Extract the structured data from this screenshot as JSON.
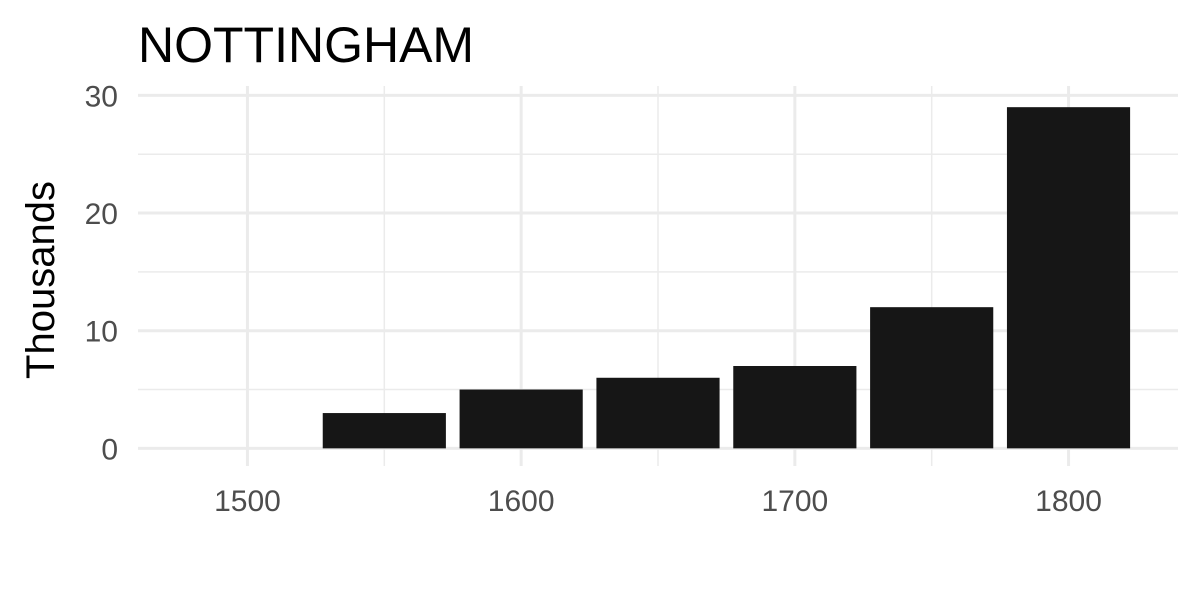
{
  "chart_data": {
    "type": "bar",
    "title": "NOTTINGHAM",
    "xlabel": "",
    "ylabel": "Thousands",
    "x": [
      1550,
      1600,
      1650,
      1700,
      1750,
      1800
    ],
    "values": [
      3,
      5,
      6,
      7,
      12,
      29
    ],
    "bar_width": 45,
    "xlim": [
      1460,
      1840
    ],
    "ylim": [
      -1.5,
      30.8
    ],
    "x_ticks": [
      1500,
      1600,
      1700,
      1800
    ],
    "y_ticks": [
      0,
      10,
      20,
      30
    ],
    "x_tick_labels": [
      "1500",
      "1600",
      "1700",
      "1800"
    ],
    "y_tick_labels": [
      "0",
      "10",
      "20",
      "30"
    ],
    "grid": true,
    "legend": "none",
    "bar_color": "#161616",
    "grid_color": "#ebebeb"
  }
}
